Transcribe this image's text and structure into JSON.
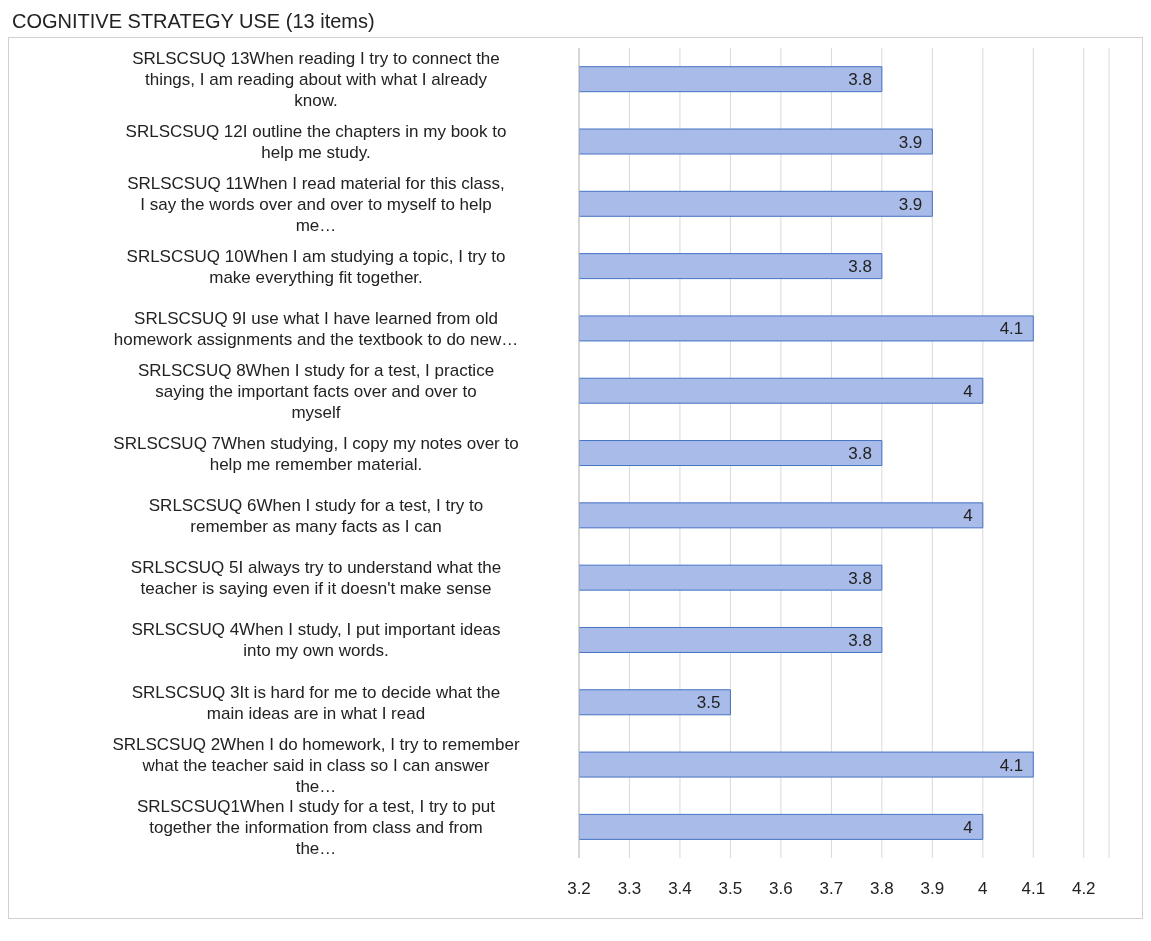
{
  "chart_data": {
    "type": "bar",
    "orientation": "horizontal",
    "title": "COGNITIVE STRATEGY USE (13 items)",
    "categories": [
      "SRLSCSUQ 13When reading I try to connect the things, I am reading about with what I already know.",
      "SRLSCSUQ 12I outline the chapters in my book to help me study.",
      "SRLSCSUQ 11When I read material for this class, I say the words over and over to myself to help me…",
      "SRLSCSUQ 10When I am studying a topic, I try to make everything fit together.",
      "SRLSCSUQ 9I use what I have learned from old homework assignments and the textbook to do new…",
      "SRLSCSUQ 8When I study for a test, I practice saying the important facts over and over to myself",
      "SRLSCSUQ 7When studying, I copy my notes over to help me remember material.",
      "SRLSCSUQ 6When I study for a test, I try to remember as many facts as I can",
      "SRLSCSUQ 5I always try to understand what the teacher is saying even if it doesn't make sense",
      "SRLSCSUQ 4When I study, I put important ideas into my own words.",
      "SRLSCSUQ 3It is hard for me to decide what the main ideas are in what I read",
      "SRLSCSUQ 2When I do homework, I try to remember what the teacher said in class so I can answer the…",
      "SRLSCSUQ1When I study for a test, I try to put together the information from class and from the…"
    ],
    "values": [
      3.8,
      3.9,
      3.9,
      3.8,
      4.1,
      4,
      3.8,
      4,
      3.8,
      3.8,
      3.5,
      4.1,
      4
    ],
    "color": "#a9bbe8",
    "xlim": [
      3.2,
      4.25
    ],
    "xticks": [
      3.2,
      3.3,
      3.4,
      3.5,
      3.6,
      3.7,
      3.8,
      3.9,
      4,
      4.1,
      4.2
    ],
    "grid": "x",
    "data_labels": true
  }
}
